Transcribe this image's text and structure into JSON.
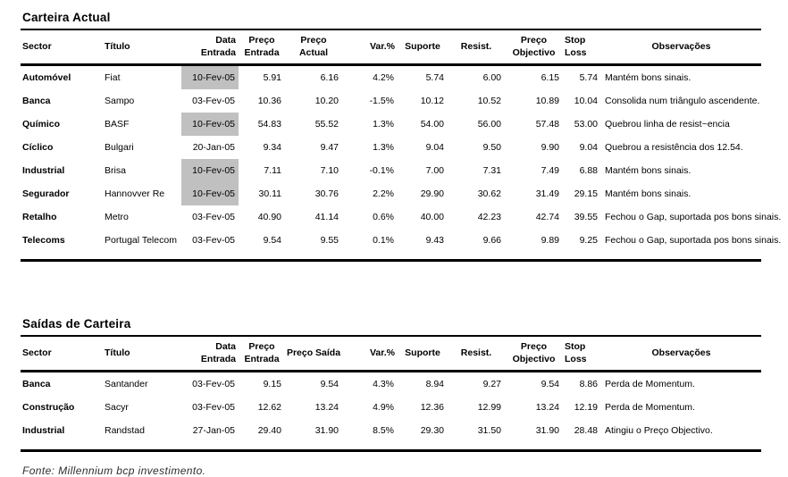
{
  "source_note": "Fonte: Millennium bcp investimento.",
  "highlight_color": "#c0c0c0",
  "tables": [
    {
      "title": "Carteira Actual",
      "columns": [
        {
          "key": "sector",
          "label": "Sector",
          "align": "left",
          "header_align": "left"
        },
        {
          "key": "titulo",
          "label": "Título",
          "align": "left",
          "header_align": "left"
        },
        {
          "key": "data-entrada",
          "label": "Data Entrada",
          "align": "right",
          "header_align": "right"
        },
        {
          "key": "preco-entrada",
          "label": "Preço\nEntrada",
          "align": "right",
          "header_align": "center"
        },
        {
          "key": "preco-actual",
          "label": "Preço\nActual",
          "align": "right",
          "header_align": "center"
        },
        {
          "key": "var-pct",
          "label": "Var.%",
          "align": "right",
          "header_align": "right"
        },
        {
          "key": "suporte",
          "label": "Suporte",
          "align": "right",
          "header_align": "center"
        },
        {
          "key": "resist",
          "label": "Resist.",
          "align": "right",
          "header_align": "center"
        },
        {
          "key": "preco-objectivo",
          "label": "Preço\nObjectivo",
          "align": "right",
          "header_align": "center"
        },
        {
          "key": "stop-loss",
          "label": "Stop\nLoss",
          "align": "right",
          "header_align": "left"
        },
        {
          "key": "observacoes",
          "label": "Observações",
          "align": "left",
          "header_align": "center"
        }
      ],
      "rows": [
        {
          "highlight": true,
          "cells": [
            "Automóvel",
            "Fiat",
            "10-Fev-05",
            "5.91",
            "6.16",
            "4.2%",
            "5.74",
            "6.00",
            "6.15",
            "5.74",
            "Mantém bons sinais."
          ]
        },
        {
          "highlight": false,
          "cells": [
            "Banca",
            "Sampo",
            "03-Fev-05",
            "10.36",
            "10.20",
            "-1.5%",
            "10.12",
            "10.52",
            "10.89",
            "10.04",
            "Consolida num triângulo ascendente."
          ]
        },
        {
          "highlight": true,
          "cells": [
            "Químico",
            "BASF",
            "10-Fev-05",
            "54.83",
            "55.52",
            "1.3%",
            "54.00",
            "56.00",
            "57.48",
            "53.00",
            "Quebrou linha de resist~encia"
          ]
        },
        {
          "highlight": false,
          "cells": [
            "Cíclico",
            "Bulgari",
            "20-Jan-05",
            "9.34",
            "9.47",
            "1.3%",
            "9.04",
            "9.50",
            "9.90",
            "9.04",
            "Quebrou a resistência dos 12.54."
          ]
        },
        {
          "highlight": true,
          "cells": [
            "Industrial",
            "Brisa",
            "10-Fev-05",
            "7.11",
            "7.10",
            "-0.1%",
            "7.00",
            "7.31",
            "7.49",
            "6.88",
            "Mantém bons sinais."
          ]
        },
        {
          "highlight": true,
          "cells": [
            "Segurador",
            "Hannovver Re",
            "10-Fev-05",
            "30.11",
            "30.76",
            "2.2%",
            "29.90",
            "30.62",
            "31.49",
            "29.15",
            "Mantém bons sinais."
          ]
        },
        {
          "highlight": false,
          "cells": [
            "Retalho",
            "Metro",
            "03-Fev-05",
            "40.90",
            "41.14",
            "0.6%",
            "40.00",
            "42.23",
            "42.74",
            "39.55",
            "Fechou o Gap, suportada pos bons sinais."
          ]
        },
        {
          "highlight": false,
          "cells": [
            "Telecoms",
            "Portugal Telecom",
            "03-Fev-05",
            "9.54",
            "9.55",
            "0.1%",
            "9.43",
            "9.66",
            "9.89",
            "9.25",
            "Fechou o Gap, suportada pos bons sinais."
          ]
        }
      ]
    },
    {
      "title": "Saídas de Carteira",
      "columns": [
        {
          "key": "sector",
          "label": "Sector",
          "align": "left",
          "header_align": "left"
        },
        {
          "key": "titulo",
          "label": "Título",
          "align": "left",
          "header_align": "left"
        },
        {
          "key": "data-entrada",
          "label": "Data Entrada",
          "align": "right",
          "header_align": "right"
        },
        {
          "key": "preco-entrada",
          "label": "Preço\nEntrada",
          "align": "right",
          "header_align": "center"
        },
        {
          "key": "preco-saida",
          "label": "Preço Saída",
          "align": "right",
          "header_align": "center"
        },
        {
          "key": "var-pct",
          "label": "Var.%",
          "align": "right",
          "header_align": "right"
        },
        {
          "key": "suporte",
          "label": "Suporte",
          "align": "right",
          "header_align": "center"
        },
        {
          "key": "resist",
          "label": "Resist.",
          "align": "right",
          "header_align": "center"
        },
        {
          "key": "preco-objectivo",
          "label": "Preço\nObjectivo",
          "align": "right",
          "header_align": "center"
        },
        {
          "key": "stop-loss",
          "label": "Stop\nLoss",
          "align": "right",
          "header_align": "left"
        },
        {
          "key": "observacoes",
          "label": "Observações",
          "align": "left",
          "header_align": "center"
        }
      ],
      "rows": [
        {
          "highlight": false,
          "cells": [
            "Banca",
            "Santander",
            "03-Fev-05",
            "9.15",
            "9.54",
            "4.3%",
            "8.94",
            "9.27",
            "9.54",
            "8.86",
            "Perda de Momentum."
          ]
        },
        {
          "highlight": false,
          "cells": [
            "Construção",
            "Sacyr",
            "03-Fev-05",
            "12.62",
            "13.24",
            "4.9%",
            "12.36",
            "12.99",
            "13.24",
            "12.19",
            "Perda de Momentum."
          ]
        },
        {
          "highlight": false,
          "cells": [
            "Industrial",
            "Randstad",
            "27-Jan-05",
            "29.40",
            "31.90",
            "8.5%",
            "29.30",
            "31.50",
            "31.90",
            "28.48",
            "Atingiu o Preço Objectivo."
          ]
        }
      ]
    }
  ]
}
